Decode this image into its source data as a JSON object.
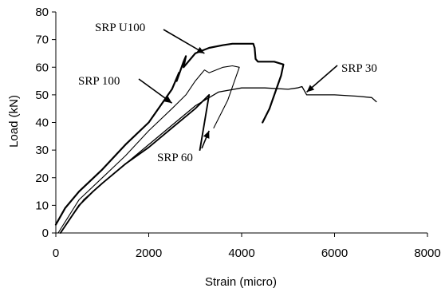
{
  "chart_data": {
    "type": "line",
    "title": "",
    "xlabel": "Strain (micro)",
    "ylabel": "Load (kN)",
    "xlim": [
      0,
      8000
    ],
    "ylim": [
      0,
      80
    ],
    "xticks": [
      0,
      2000,
      4000,
      6000,
      8000
    ],
    "yticks": [
      0,
      10,
      20,
      30,
      40,
      50,
      60,
      70,
      80
    ],
    "grid": false,
    "legend": "none",
    "series": [
      {
        "name": "SRP U100",
        "color": "#000000",
        "x": [
          0,
          200,
          500,
          1000,
          1500,
          2000,
          2500,
          2650,
          2600,
          2750,
          2800,
          2750,
          3000,
          3300,
          3600,
          3800,
          4000,
          4250,
          4280,
          4300,
          4350,
          4700,
          4900,
          4850,
          4600,
          4450
        ],
        "y": [
          3,
          9,
          15,
          23,
          32,
          40,
          52,
          58,
          55,
          62,
          64,
          60,
          65,
          67,
          68,
          68.5,
          68.5,
          68.5,
          67,
          63,
          62,
          62,
          61,
          57,
          45,
          40
        ]
      },
      {
        "name": "SRP 100",
        "color": "#000000",
        "x": [
          50,
          200,
          500,
          1000,
          1500,
          2000,
          2500,
          2800,
          3000,
          3100,
          3200,
          3300,
          3600,
          3800,
          3950,
          3700,
          3400
        ],
        "y": [
          0,
          4,
          12,
          20,
          28,
          37,
          45,
          50,
          55,
          57,
          59,
          58,
          60,
          60.5,
          60,
          48,
          38
        ]
      },
      {
        "name": "SRP 60",
        "color": "#000000",
        "x": [
          100,
          300,
          500,
          800,
          1000,
          1500,
          2000,
          2500,
          3000,
          3300,
          3100
        ],
        "y": [
          0,
          5,
          10,
          15,
          18,
          25,
          31,
          38,
          45,
          50,
          30
        ]
      },
      {
        "name": "SRP 30",
        "color": "#000000",
        "x": [
          100,
          300,
          600,
          1000,
          1500,
          2000,
          2500,
          3000,
          3500,
          4000,
          4500,
          5000,
          5200,
          5300,
          5400,
          5500,
          6000,
          6500,
          6800,
          6900
        ],
        "y": [
          0,
          5,
          12,
          18,
          25,
          32,
          39,
          46,
          51,
          52.5,
          52.5,
          52,
          52.5,
          53,
          50,
          50,
          50,
          49.5,
          49,
          47.5
        ]
      }
    ],
    "annotations": [
      {
        "text": "SRP U100",
        "arrow_to": {
          "x": 3200,
          "y": 65
        }
      },
      {
        "text": "SRP 100",
        "arrow_to": {
          "x": 2500,
          "y": 47
        }
      },
      {
        "text": "SRP 60",
        "arrow_to": {
          "x": 3300,
          "y": 37
        }
      },
      {
        "text": "SRP 30",
        "arrow_to": {
          "x": 5400,
          "y": 51
        }
      }
    ]
  }
}
